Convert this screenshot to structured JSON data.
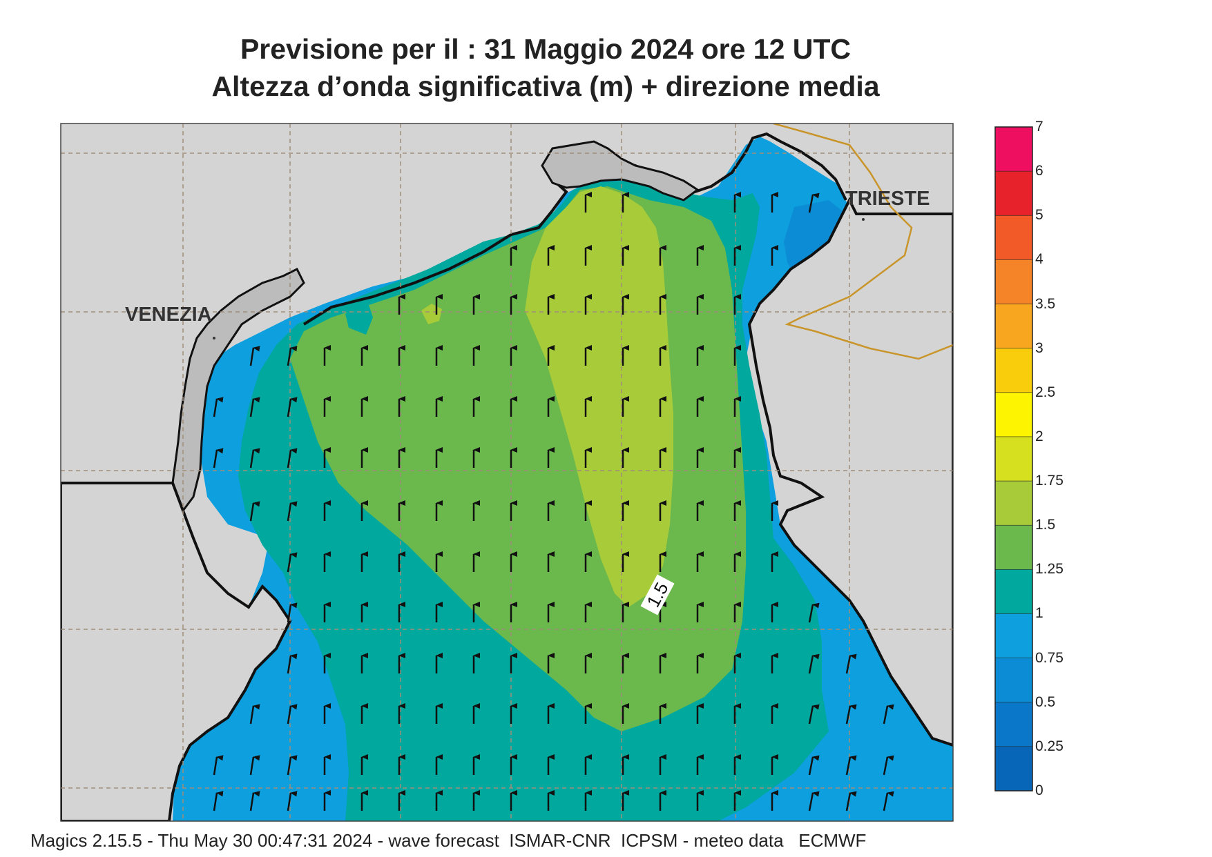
{
  "title": {
    "line1": "Previsione per il  :  31   Maggio  2024   ore 12 UTC",
    "line2": "Altezza d’onda significativa (m) + direzione media"
  },
  "map": {
    "cities": [
      {
        "name": "VENEZIA"
      },
      {
        "name": "TRIESTE"
      }
    ],
    "contour_label": "1.5",
    "arrow_direction": "north"
  },
  "colorbar": {
    "labels": [
      "7",
      "6",
      "5",
      "4",
      "3.5",
      "3",
      "2.5",
      "2",
      "1.75",
      "1.5",
      "1.25",
      "1",
      "0.75",
      "0.5",
      "0.25",
      "0"
    ],
    "colors": [
      "#ee0f60",
      "#e8222a",
      "#f25a27",
      "#f58428",
      "#f8a51f",
      "#f9cd0c",
      "#fcf400",
      "#d6e01e",
      "#a8cb3a",
      "#6bb84d",
      "#00a89e",
      "#0d9fde",
      "#0d8cd6",
      "#0a77c8",
      "#0866b8"
    ]
  },
  "chart_data": {
    "type": "heatmap",
    "title": "Previsione per il  :  31   Maggio  2024   ore 12 UTC — Altezza d’onda significativa (m) + direzione media",
    "colorbar_levels": [
      0,
      0.25,
      0.5,
      0.75,
      1,
      1.25,
      1.5,
      1.75,
      2,
      2.5,
      3,
      3.5,
      4,
      5,
      6,
      7
    ],
    "wave_height_max_m": 1.75,
    "mean_direction": "north",
    "contour_labels": [
      "1.5"
    ]
  },
  "footer": "Magics 2.15.5 - Thu May 30 00:47:31 2024 - wave forecast  ISMAR-CNR  ICPSM - meteo data   ECMWF",
  "colors": {
    "land": "#d4d4d4",
    "city_land": "#bcbcbc",
    "border": "#c9952a",
    "grid": "#a08e7a"
  }
}
